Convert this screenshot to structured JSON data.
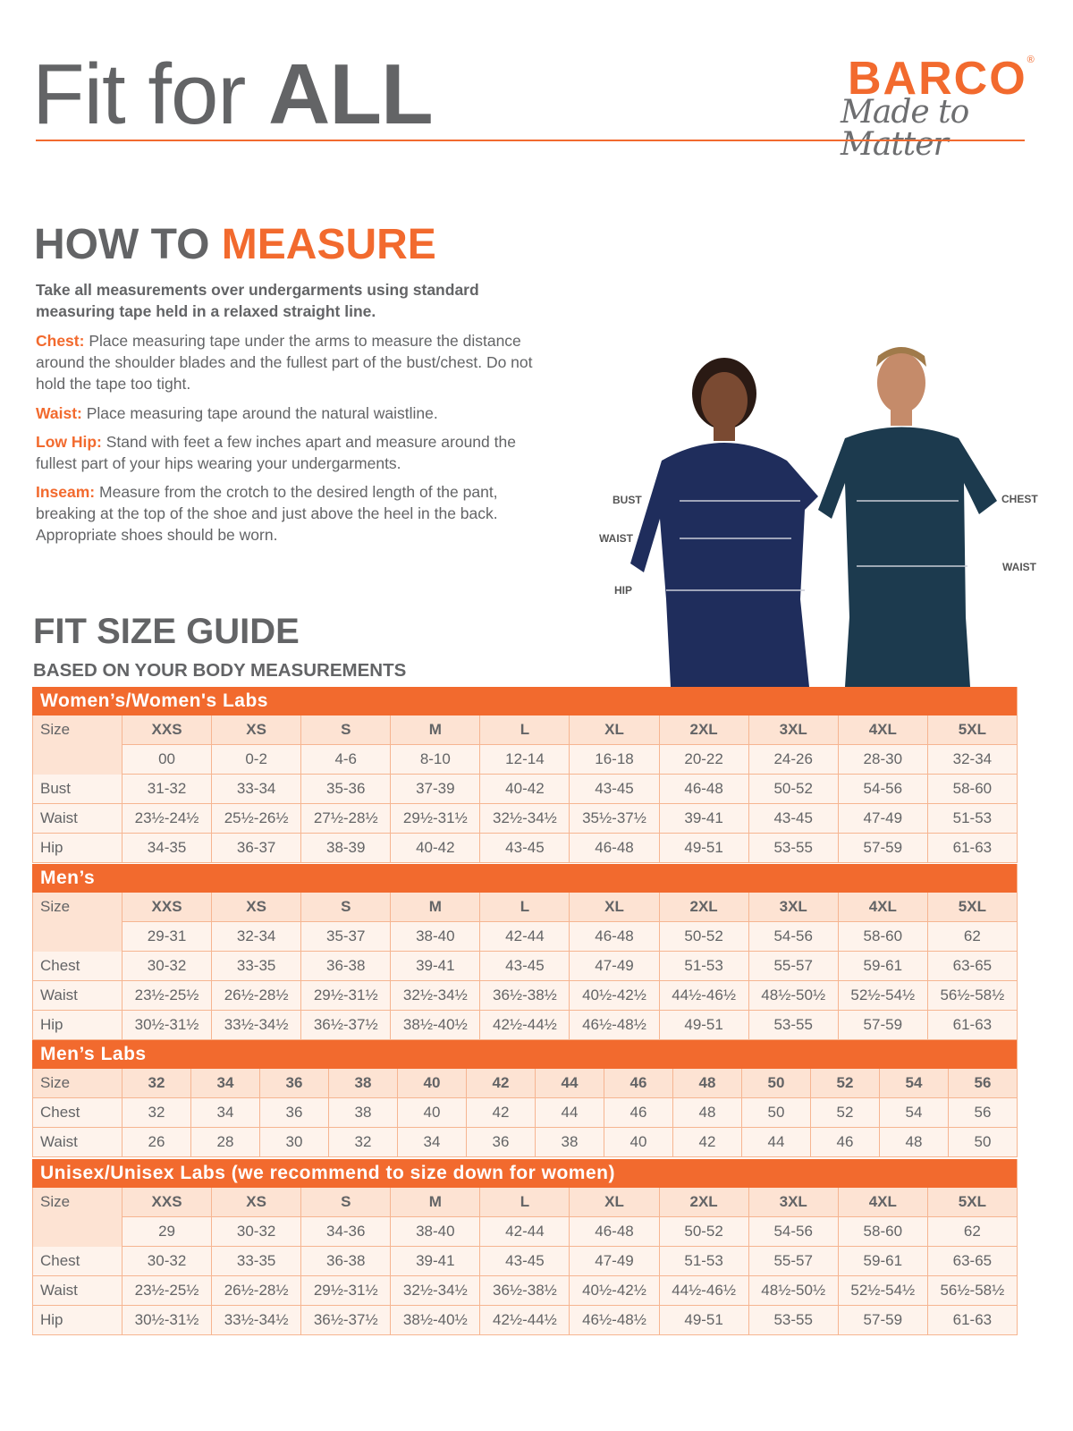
{
  "header": {
    "title_regular": "Fit for",
    "title_bold": "ALL",
    "brand": "BARCO",
    "brand_mark": "®",
    "tagline": "Made to Matter"
  },
  "how_to": {
    "title_gray": "HOW TO",
    "title_orange": "MEASURE",
    "intro": "Take all measurements over undergarments using standard measuring tape held in a relaxed straight line.",
    "items": [
      {
        "key": "Chest:",
        "text": "Place measuring tape under the arms to measure the distance around the shoulder blades and the fullest part of the bust/chest. Do not hold the tape too tight."
      },
      {
        "key": "Waist:",
        "text": "Place measuring tape around the natural waistline."
      },
      {
        "key": "Low Hip:",
        "text": "Stand with feet a few inches apart and measure around the fullest part of your hips wearing your undergarments."
      },
      {
        "key": "Inseam:",
        "text": "Measure from the crotch to the desired length of the pant, breaking at the top of the shoe and just above the heel in the back. Appropriate shoes should be worn."
      }
    ]
  },
  "photo_labels": {
    "bust": "BUST",
    "waist_w": "WAIST",
    "hip": "HIP",
    "chest": "CHEST",
    "waist_m": "WAIST"
  },
  "guide": {
    "title": "FIT SIZE GUIDE",
    "subtitle": "BASED ON YOUR BODY MEASUREMENTS"
  },
  "tables": [
    {
      "title": "Women’s/Women's Labs",
      "size_label": "Size",
      "sizes": [
        "XXS",
        "XS",
        "S",
        "M",
        "L",
        "XL",
        "2XL",
        "3XL",
        "4XL",
        "5XL"
      ],
      "size_sub": [
        "00",
        "0-2",
        "4-6",
        "8-10",
        "12-14",
        "16-18",
        "20-22",
        "24-26",
        "28-30",
        "32-34"
      ],
      "rows": [
        {
          "label": "Bust",
          "values": [
            "31-32",
            "33-34",
            "35-36",
            "37-39",
            "40-42",
            "43-45",
            "46-48",
            "50-52",
            "54-56",
            "58-60"
          ]
        },
        {
          "label": "Waist",
          "values": [
            "23½-24½",
            "25½-26½",
            "27½-28½",
            "29½-31½",
            "32½-34½",
            "35½-37½",
            "39-41",
            "43-45",
            "47-49",
            "51-53"
          ]
        },
        {
          "label": "Hip",
          "values": [
            "34-35",
            "36-37",
            "38-39",
            "40-42",
            "43-45",
            "46-48",
            "49-51",
            "53-55",
            "57-59",
            "61-63"
          ]
        }
      ]
    },
    {
      "title": "Men’s",
      "size_label": "Size",
      "sizes": [
        "XXS",
        "XS",
        "S",
        "M",
        "L",
        "XL",
        "2XL",
        "3XL",
        "4XL",
        "5XL"
      ],
      "size_sub": [
        "29-31",
        "32-34",
        "35-37",
        "38-40",
        "42-44",
        "46-48",
        "50-52",
        "54-56",
        "58-60",
        "62"
      ],
      "rows": [
        {
          "label": "Chest",
          "values": [
            "30-32",
            "33-35",
            "36-38",
            "39-41",
            "43-45",
            "47-49",
            "51-53",
            "55-57",
            "59-61",
            "63-65"
          ]
        },
        {
          "label": "Waist",
          "values": [
            "23½-25½",
            "26½-28½",
            "29½-31½",
            "32½-34½",
            "36½-38½",
            "40½-42½",
            "44½-46½",
            "48½-50½",
            "52½-54½",
            "56½-58½"
          ]
        },
        {
          "label": "Hip",
          "values": [
            "30½-31½",
            "33½-34½",
            "36½-37½",
            "38½-40½",
            "42½-44½",
            "46½-48½",
            "49-51",
            "53-55",
            "57-59",
            "61-63"
          ]
        }
      ]
    },
    {
      "title": "Men’s Labs",
      "size_label": "Size",
      "sizes": [
        "32",
        "34",
        "36",
        "38",
        "40",
        "42",
        "44",
        "46",
        "48",
        "50",
        "52",
        "54",
        "56"
      ],
      "rows": [
        {
          "label": "Chest",
          "values": [
            "32",
            "34",
            "36",
            "38",
            "40",
            "42",
            "44",
            "46",
            "48",
            "50",
            "52",
            "54",
            "56"
          ]
        },
        {
          "label": "Waist",
          "values": [
            "26",
            "28",
            "30",
            "32",
            "34",
            "36",
            "38",
            "40",
            "42",
            "44",
            "46",
            "48",
            "50"
          ]
        }
      ]
    },
    {
      "title": "Unisex/Unisex Labs (we recommend to size down for women)",
      "size_label": "Size",
      "sizes": [
        "XXS",
        "XS",
        "S",
        "M",
        "L",
        "XL",
        "2XL",
        "3XL",
        "4XL",
        "5XL"
      ],
      "size_sub": [
        "29",
        "30-32",
        "34-36",
        "38-40",
        "42-44",
        "46-48",
        "50-52",
        "54-56",
        "58-60",
        "62"
      ],
      "rows": [
        {
          "label": "Chest",
          "values": [
            "30-32",
            "33-35",
            "36-38",
            "39-41",
            "43-45",
            "47-49",
            "51-53",
            "55-57",
            "59-61",
            "63-65"
          ]
        },
        {
          "label": "Waist",
          "values": [
            "23½-25½",
            "26½-28½",
            "29½-31½",
            "32½-34½",
            "36½-38½",
            "40½-42½",
            "44½-46½",
            "48½-50½",
            "52½-54½",
            "56½-58½"
          ]
        },
        {
          "label": "Hip",
          "values": [
            "30½-31½",
            "33½-34½",
            "36½-37½",
            "38½-40½",
            "42½-44½",
            "46½-48½",
            "49-51",
            "53-55",
            "57-59",
            "61-63"
          ]
        }
      ]
    }
  ],
  "colors": {
    "accent": "#f26a2e",
    "text": "#636466",
    "header_fill": "#fde3d3",
    "cell_fill": "#fef3ec",
    "scrubs": "#1f2d5c"
  }
}
